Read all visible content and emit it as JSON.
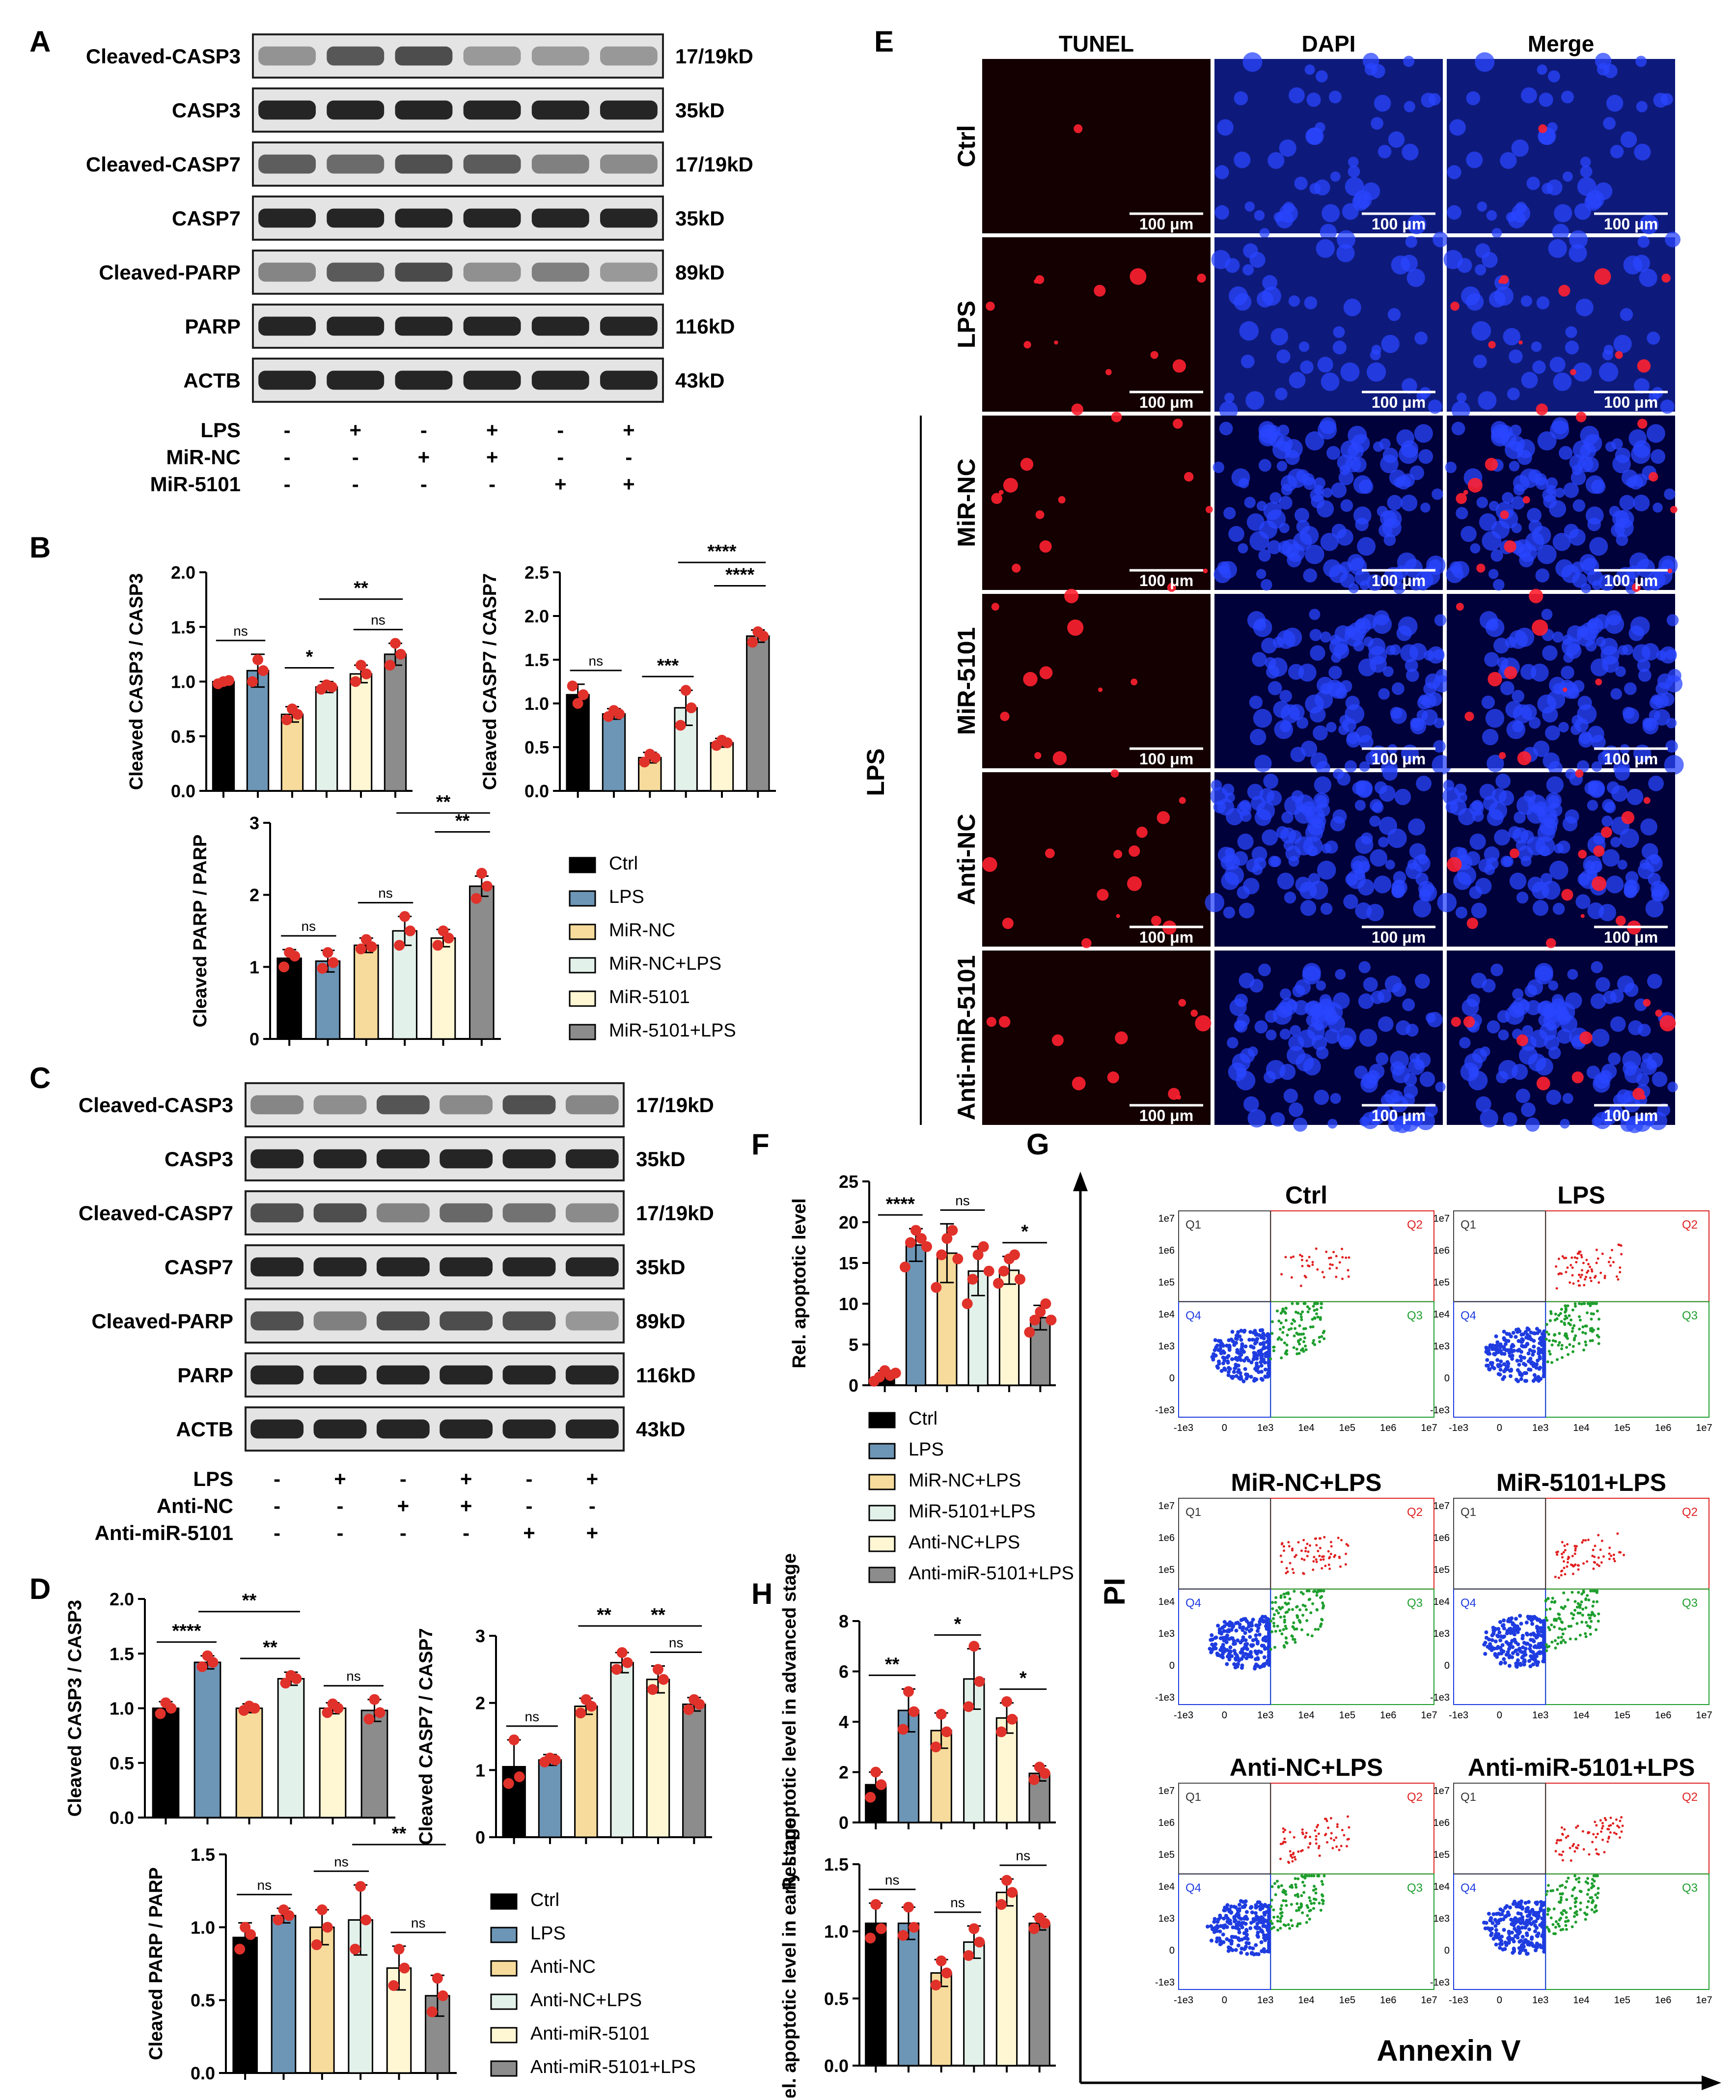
{
  "panel_letters": [
    "A",
    "B",
    "C",
    "D",
    "E",
    "F",
    "G",
    "H"
  ],
  "colors": {
    "ctrl": "#000000",
    "lps": "#6D96B6",
    "g3": "#F6DB9C",
    "g4": "#E3F1EB",
    "g5": "#FFF6D4",
    "g6": "#8C8C8C",
    "dot": "#E0312A",
    "tunel_bg": "#140000",
    "dapi_bg": "#00003A",
    "flow_q2": "#E02020",
    "flow_q3": "#1E9E2E",
    "flow_q4": "#1E3CE0"
  },
  "blot_A": {
    "rows": [
      {
        "label": "Cleaved-CASP3",
        "size": "17/19kD"
      },
      {
        "label": "CASP3",
        "size": "35kD"
      },
      {
        "label": "Cleaved-CASP7",
        "size": "17/19kD"
      },
      {
        "label": "CASP7",
        "size": "35kD"
      },
      {
        "label": "Cleaved-PARP",
        "size": "89kD"
      },
      {
        "label": "PARP",
        "size": "116kD"
      },
      {
        "label": "ACTB",
        "size": "43kD"
      }
    ],
    "treatments": [
      {
        "label": "LPS",
        "signs": [
          "-",
          "+",
          "-",
          "+",
          "-",
          "+"
        ]
      },
      {
        "label": "MiR-NC",
        "signs": [
          "-",
          "-",
          "+",
          "+",
          "-",
          "-"
        ]
      },
      {
        "label": "MiR-5101",
        "signs": [
          "-",
          "-",
          "-",
          "-",
          "+",
          "+"
        ]
      }
    ]
  },
  "blot_C": {
    "rows": [
      {
        "label": "Cleaved-CASP3",
        "size": "17/19kD"
      },
      {
        "label": "CASP3",
        "size": "35kD"
      },
      {
        "label": "Cleaved-CASP7",
        "size": "17/19kD"
      },
      {
        "label": "CASP7",
        "size": "35kD"
      },
      {
        "label": "Cleaved-PARP",
        "size": "89kD"
      },
      {
        "label": "PARP",
        "size": "116kD"
      },
      {
        "label": "ACTB",
        "size": "43kD"
      }
    ],
    "treatments": [
      {
        "label": "LPS",
        "signs": [
          "-",
          "+",
          "-",
          "+",
          "-",
          "+"
        ]
      },
      {
        "label": "Anti-NC",
        "signs": [
          "-",
          "-",
          "+",
          "+",
          "-",
          "-"
        ]
      },
      {
        "label": "Anti-miR-5101",
        "signs": [
          "-",
          "-",
          "-",
          "-",
          "+",
          "+"
        ]
      }
    ]
  },
  "legend_B": [
    "Ctrl",
    "LPS",
    "MiR-NC",
    "MiR-NC+LPS",
    "MiR-5101",
    "MiR-5101+LPS"
  ],
  "legend_D": [
    "Ctrl",
    "LPS",
    "Anti-NC",
    "Anti-NC+LPS",
    "Anti-miR-5101",
    "Anti-miR-5101+LPS"
  ],
  "legend_F": [
    "Ctrl",
    "LPS",
    "MiR-NC+LPS",
    "MiR-5101+LPS",
    "Anti-NC+LPS",
    "Anti-miR-5101+LPS"
  ],
  "chart_data": [
    {
      "id": "B1",
      "type": "bar",
      "ylabel": "Cleaved CASP3 / CASP3",
      "ylim": [
        0,
        2.0
      ],
      "ticks": [
        "0.0",
        "0.5",
        "1.0",
        "1.5",
        "2.0"
      ],
      "tickvals": [
        0,
        0.5,
        1.0,
        1.5,
        2.0
      ],
      "categories": [
        "Ctrl",
        "LPS",
        "MiR-NC",
        "MiR-NC+LPS",
        "MiR-5101",
        "MiR-5101+LPS"
      ],
      "values": [
        1.0,
        1.1,
        0.7,
        0.95,
        1.07,
        1.25
      ],
      "errors": [
        0.02,
        0.15,
        0.07,
        0.05,
        0.08,
        0.1
      ],
      "points": [
        [
          0.98,
          1.0,
          1.01
        ],
        [
          1.0,
          1.2,
          1.1
        ],
        [
          0.65,
          0.75,
          0.7
        ],
        [
          0.93,
          0.97,
          0.95
        ],
        [
          1.0,
          1.15,
          1.07
        ],
        [
          1.15,
          1.35,
          1.25
        ]
      ],
      "sig": [
        {
          "a": 0,
          "b": 1,
          "label": "ns",
          "level": 0
        },
        {
          "a": 2,
          "b": 3,
          "label": "*",
          "level": 0
        },
        {
          "a": 4,
          "b": 5,
          "label": "ns",
          "level": 0
        },
        {
          "a": 3,
          "b": 5,
          "label": "**",
          "level": 1
        }
      ]
    },
    {
      "id": "B2",
      "type": "bar",
      "ylabel": "Cleaved CASP7 / CASP7",
      "ylim": [
        0,
        2.5
      ],
      "ticks": [
        "0.0",
        "0.5",
        "1.0",
        "1.5",
        "2.0",
        "2.5"
      ],
      "tickvals": [
        0,
        0.5,
        1.0,
        1.5,
        2.0,
        2.5
      ],
      "categories": [
        "Ctrl",
        "LPS",
        "MiR-NC",
        "MiR-NC+LPS",
        "MiR-5101",
        "MiR-5101+LPS"
      ],
      "values": [
        1.1,
        0.88,
        0.38,
        0.95,
        0.55,
        1.77
      ],
      "errors": [
        0.12,
        0.06,
        0.06,
        0.2,
        0.05,
        0.07
      ],
      "points": [
        [
          1.2,
          1.0,
          1.1
        ],
        [
          0.85,
          0.92,
          0.88
        ],
        [
          0.33,
          0.42,
          0.38
        ],
        [
          0.75,
          1.15,
          0.95
        ],
        [
          0.52,
          0.58,
          0.55
        ],
        [
          1.7,
          1.82,
          1.77
        ]
      ],
      "sig": [
        {
          "a": 0,
          "b": 1,
          "label": "ns",
          "level": 0
        },
        {
          "a": 2,
          "b": 3,
          "label": "***",
          "level": 0
        },
        {
          "a": 4,
          "b": 5,
          "label": "****",
          "level": 1
        },
        {
          "a": 3,
          "b": 5,
          "label": "****",
          "level": 2
        }
      ]
    },
    {
      "id": "B3",
      "type": "bar",
      "ylabel": "Cleaved PARP / PARP",
      "ylim": [
        0,
        3
      ],
      "ticks": [
        "0",
        "1",
        "2",
        "3"
      ],
      "tickvals": [
        0,
        1,
        2,
        3
      ],
      "categories": [
        "Ctrl",
        "LPS",
        "MiR-NC",
        "MiR-NC+LPS",
        "MiR-5101",
        "MiR-5101+LPS"
      ],
      "values": [
        1.12,
        1.08,
        1.3,
        1.5,
        1.4,
        2.12
      ],
      "errors": [
        0.12,
        0.15,
        0.1,
        0.2,
        0.12,
        0.14
      ],
      "points": [
        [
          1.0,
          1.2,
          1.15
        ],
        [
          0.98,
          1.2,
          1.06
        ],
        [
          1.25,
          1.38,
          1.28
        ],
        [
          1.3,
          1.7,
          1.5
        ],
        [
          1.3,
          1.5,
          1.4
        ],
        [
          1.95,
          2.3,
          2.12
        ]
      ],
      "sig": [
        {
          "a": 0,
          "b": 1,
          "label": "ns",
          "level": 0
        },
        {
          "a": 2,
          "b": 3,
          "label": "ns",
          "level": 0
        },
        {
          "a": 4,
          "b": 5,
          "label": "**",
          "level": 1
        },
        {
          "a": 3,
          "b": 5,
          "label": "**",
          "level": 2
        }
      ]
    },
    {
      "id": "D1",
      "type": "bar",
      "ylabel": "Cleaved CASP3 / CASP3",
      "ylim": [
        0,
        2.0
      ],
      "ticks": [
        "0.0",
        "0.5",
        "1.0",
        "1.5",
        "2.0"
      ],
      "tickvals": [
        0,
        0.5,
        1.0,
        1.5,
        2.0
      ],
      "categories": [
        "Ctrl",
        "LPS",
        "Anti-NC",
        "Anti-NC+LPS",
        "Anti-miR-5101",
        "Anti-miR-5101+LPS"
      ],
      "values": [
        1.0,
        1.42,
        1.0,
        1.27,
        1.0,
        0.98
      ],
      "errors": [
        0.06,
        0.06,
        0.04,
        0.06,
        0.05,
        0.1
      ],
      "points": [
        [
          0.95,
          1.05,
          1.0
        ],
        [
          1.38,
          1.48,
          1.42
        ],
        [
          0.98,
          1.02,
          1.0
        ],
        [
          1.23,
          1.3,
          1.27
        ],
        [
          0.96,
          1.04,
          1.0
        ],
        [
          0.9,
          1.08,
          0.96
        ]
      ],
      "sig": [
        {
          "a": 0,
          "b": 1,
          "label": "****",
          "level": 0
        },
        {
          "a": 2,
          "b": 3,
          "label": "**",
          "level": 0
        },
        {
          "a": 4,
          "b": 5,
          "label": "ns",
          "level": 0
        },
        {
          "a": 1,
          "b": 3,
          "label": "**",
          "level": 1
        }
      ]
    },
    {
      "id": "D2",
      "type": "bar",
      "ylabel": "Cleaved CASP7 / CASP7",
      "ylim": [
        0,
        3
      ],
      "ticks": [
        "0",
        "1",
        "2",
        "3"
      ],
      "tickvals": [
        0,
        1,
        2,
        3
      ],
      "categories": [
        "Ctrl",
        "LPS",
        "Anti-NC",
        "Anti-NC+LPS",
        "Anti-miR-5101",
        "Anti-miR-5101+LPS"
      ],
      "values": [
        1.05,
        1.15,
        1.95,
        2.6,
        2.35,
        1.98
      ],
      "errors": [
        0.4,
        0.08,
        0.12,
        0.15,
        0.2,
        0.1
      ],
      "points": [
        [
          0.8,
          1.45,
          0.9
        ],
        [
          1.12,
          1.18,
          1.15
        ],
        [
          1.85,
          2.05,
          1.95
        ],
        [
          2.5,
          2.75,
          2.6
        ],
        [
          2.2,
          2.5,
          2.35
        ],
        [
          1.9,
          2.05,
          1.98
        ]
      ],
      "sig": [
        {
          "a": 0,
          "b": 1,
          "label": "ns",
          "level": 0
        },
        {
          "a": 2,
          "b": 3,
          "label": "**",
          "level": 1
        },
        {
          "a": 4,
          "b": 5,
          "label": "ns",
          "level": 0
        },
        {
          "a": 3,
          "b": 5,
          "label": "**",
          "level": 2
        }
      ]
    },
    {
      "id": "D3",
      "type": "bar",
      "ylabel": "Cleaved PARP / PARP",
      "ylim": [
        0,
        1.5
      ],
      "ticks": [
        "0.0",
        "0.5",
        "1.0",
        "1.5"
      ],
      "tickvals": [
        0,
        0.5,
        1.0,
        1.5
      ],
      "categories": [
        "Ctrl",
        "LPS",
        "Anti-NC",
        "Anti-NC+LPS",
        "Anti-miR-5101",
        "Anti-miR-5101+LPS"
      ],
      "values": [
        0.93,
        1.08,
        1.0,
        1.05,
        0.72,
        0.53
      ],
      "errors": [
        0.1,
        0.05,
        0.12,
        0.24,
        0.15,
        0.14
      ],
      "points": [
        [
          0.85,
          1.0,
          0.95
        ],
        [
          1.05,
          1.12,
          1.08
        ],
        [
          0.88,
          1.12,
          1.0
        ],
        [
          0.85,
          1.28,
          1.05
        ],
        [
          0.6,
          0.85,
          0.72
        ],
        [
          0.42,
          0.65,
          0.53
        ]
      ],
      "sig": [
        {
          "a": 0,
          "b": 1,
          "label": "ns",
          "level": 0
        },
        {
          "a": 2,
          "b": 3,
          "label": "ns",
          "level": 0
        },
        {
          "a": 4,
          "b": 5,
          "label": "ns",
          "level": 0
        },
        {
          "a": 3,
          "b": 5,
          "label": "**",
          "level": 1
        }
      ]
    },
    {
      "id": "F",
      "type": "bar",
      "ylabel": "Rel. apoptotic level",
      "ylim": [
        0,
        25
      ],
      "ticks": [
        "0",
        "5",
        "10",
        "15",
        "20",
        "25"
      ],
      "tickvals": [
        0,
        5,
        10,
        15,
        20,
        25
      ],
      "categories": [
        "Ctrl",
        "LPS",
        "MiR-NC+LPS",
        "MiR-5101+LPS",
        "Anti-NC+LPS",
        "Anti-miR-5101+LPS"
      ],
      "values": [
        1.2,
        17.2,
        16.2,
        14.0,
        14.1,
        8.3
      ],
      "errors": [
        0.6,
        2.0,
        3.6,
        3.0,
        1.7,
        1.5
      ],
      "points": [
        [
          0.5,
          1.0,
          1.8,
          1.2,
          1.5
        ],
        [
          14.5,
          17.5,
          19.0,
          18.0,
          17.0
        ],
        [
          12.0,
          16.0,
          18.0,
          19.0,
          15.5
        ],
        [
          10.0,
          13.0,
          16.0,
          17.0,
          14.0
        ],
        [
          12.5,
          14.0,
          15.5,
          16.0,
          13.0
        ],
        [
          6.5,
          8.0,
          9.0,
          10.0,
          8.0
        ]
      ],
      "sig": [
        {
          "a": 0,
          "b": 1,
          "label": "****",
          "level": 0
        },
        {
          "a": 2,
          "b": 3,
          "label": "ns",
          "level": 0
        },
        {
          "a": 4,
          "b": 5,
          "label": "*",
          "level": 0
        }
      ]
    },
    {
      "id": "H1",
      "type": "bar",
      "ylabel": "Rel. apoptotic level in advanced stage",
      "ylim": [
        0,
        8
      ],
      "ticks": [
        "0",
        "2",
        "4",
        "6",
        "8"
      ],
      "tickvals": [
        0,
        2,
        4,
        6,
        8
      ],
      "categories": [
        "Ctrl",
        "LPS",
        "MiR-NC+LPS",
        "MiR-5101+LPS",
        "Anti-NC+LPS",
        "Anti-miR-5101+LPS"
      ],
      "values": [
        1.5,
        4.45,
        3.65,
        5.7,
        4.15,
        1.95
      ],
      "errors": [
        0.5,
        0.85,
        0.7,
        1.2,
        0.6,
        0.3
      ],
      "points": [
        [
          1.0,
          2.0,
          1.5
        ],
        [
          3.7,
          5.2,
          4.4
        ],
        [
          3.0,
          4.3,
          3.6
        ],
        [
          4.6,
          7.0,
          5.6
        ],
        [
          3.6,
          4.8,
          4.1
        ],
        [
          1.7,
          2.2,
          1.95
        ]
      ],
      "sig": [
        {
          "a": 0,
          "b": 1,
          "label": "**",
          "level": 0
        },
        {
          "a": 2,
          "b": 3,
          "label": "*",
          "level": 0
        },
        {
          "a": 4,
          "b": 5,
          "label": "*",
          "level": 0
        }
      ]
    },
    {
      "id": "H2",
      "type": "bar",
      "ylabel": "Rel. apoptotic level in early stage",
      "ylim": [
        0,
        1.5
      ],
      "ticks": [
        "0.0",
        "0.5",
        "1.0",
        "1.5"
      ],
      "tickvals": [
        0,
        0.5,
        1.0,
        1.5
      ],
      "categories": [
        "Ctrl",
        "LPS",
        "MiR-NC+LPS",
        "MiR-5101+LPS",
        "Anti-NC+LPS",
        "Anti-miR-5101+LPS"
      ],
      "values": [
        1.06,
        1.06,
        0.69,
        0.92,
        1.29,
        1.06
      ],
      "errors": [
        0.15,
        0.12,
        0.1,
        0.12,
        0.1,
        0.05
      ],
      "points": [
        [
          0.95,
          1.2,
          1.02
        ],
        [
          0.97,
          1.18,
          1.03
        ],
        [
          0.6,
          0.78,
          0.69
        ],
        [
          0.82,
          1.02,
          0.92
        ],
        [
          1.2,
          1.38,
          1.29
        ],
        [
          1.02,
          1.1,
          1.06
        ]
      ],
      "sig": [
        {
          "a": 0,
          "b": 1,
          "label": "ns",
          "level": 0
        },
        {
          "a": 2,
          "b": 3,
          "label": "ns",
          "level": 0
        },
        {
          "a": 4,
          "b": 5,
          "label": "ns",
          "level": 0
        }
      ]
    }
  ],
  "panel_E": {
    "columns": [
      "TUNEL",
      "DAPI",
      "Merge"
    ],
    "rows": [
      "Ctrl",
      "LPS",
      "MiR-NC",
      "MiR-5101",
      "Anti-NC",
      "Anti-miR-5101"
    ],
    "group_label": "LPS",
    "scale_bar": "100 μm"
  },
  "panel_G": {
    "plots": [
      "Ctrl",
      "LPS",
      "MiR-NC+LPS",
      "MiR-5101+LPS",
      "Anti-NC+LPS",
      "Anti-miR-5101+LPS"
    ],
    "quadrants": [
      "Q1",
      "Q2",
      "Q3",
      "Q4"
    ],
    "yticks": [
      "1e7",
      "1e6",
      "1e5",
      "1e4",
      "1e3",
      "0",
      "-1e3"
    ],
    "xticks": [
      "-1e3",
      "0",
      "1e3",
      "1e4",
      "1e5",
      "1e6",
      "1e7"
    ],
    "ylabel": "PI",
    "xlabel": "Annexin V"
  }
}
